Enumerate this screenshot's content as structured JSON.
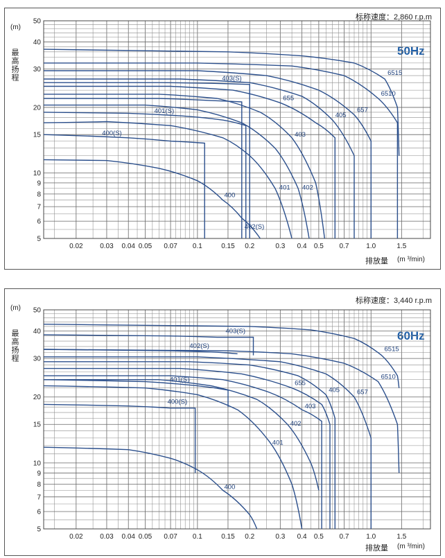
{
  "panels": [
    {
      "speed_text": "标称速度：2,860 r.p.m",
      "freq_label": "50Hz",
      "ylabel": "最高扬程",
      "yunit": "(m)",
      "xlabel": "排放量",
      "xunit": "(m ³/min)",
      "xtick_labels": [
        "0.02",
        "0.03",
        "0.04",
        "0.05",
        "0.07",
        "0.1",
        "0.15",
        "0.2",
        "0.3",
        "0.4",
        "0.5",
        "0.7",
        "1.0",
        "1.5"
      ],
      "ytick_labels": [
        "5",
        "6",
        "7",
        "8",
        "9",
        "10",
        "15",
        "20",
        "30",
        "40",
        "50"
      ]
    },
    {
      "speed_text": "标称速度：3,440 r.p.m",
      "freq_label": "60Hz",
      "ylabel": "最高扬程",
      "yunit": "(m)",
      "xlabel": "排放量",
      "xunit": "(m ³/min)",
      "xtick_labels": [
        "0.02",
        "0.03",
        "0.04",
        "0.05",
        "0.07",
        "0.1",
        "0.15",
        "0.2",
        "0.3",
        "0.4",
        "0.5",
        "0.7",
        "1.0",
        "1.5"
      ],
      "ytick_labels": [
        "5",
        "6",
        "7",
        "8",
        "9",
        "10",
        "15",
        "20",
        "30",
        "40",
        "50"
      ]
    }
  ],
  "chart_data": [
    {
      "type": "line",
      "x_scale": "log",
      "y_scale": "log",
      "xlim": [
        0.013,
        2.2
      ],
      "ylim": [
        5,
        50
      ],
      "grid": true,
      "xlabel": "排放量",
      "ylabel": "最高扬程",
      "xticks": [
        0.02,
        0.03,
        0.04,
        0.05,
        0.07,
        0.1,
        0.15,
        0.2,
        0.3,
        0.4,
        0.5,
        0.7,
        1.0,
        1.5
      ],
      "yticks": [
        5,
        6,
        7,
        8,
        9,
        10,
        15,
        20,
        30,
        40,
        50
      ],
      "series": [
        {
          "name": "400",
          "points": [
            [
              0.013,
              11.5
            ],
            [
              0.03,
              11.4
            ],
            [
              0.06,
              10.5
            ],
            [
              0.1,
              9.2
            ],
            [
              0.14,
              7.5
            ],
            [
              0.18,
              6.2
            ],
            [
              0.23,
              5
            ]
          ]
        },
        {
          "name": "400(S)",
          "points": [
            [
              0.013,
              15.0
            ],
            [
              0.04,
              14.5
            ],
            [
              0.07,
              14.0
            ],
            [
              0.11,
              13.7
            ],
            [
              0.11,
              5
            ]
          ]
        },
        {
          "name": "401",
          "points": [
            [
              0.013,
              17.0
            ],
            [
              0.03,
              17.2
            ],
            [
              0.07,
              16.5
            ],
            [
              0.14,
              14.5
            ],
            [
              0.2,
              12.0
            ],
            [
              0.28,
              8.5
            ],
            [
              0.35,
              5
            ]
          ]
        },
        {
          "name": "401(S)",
          "points": [
            [
              0.013,
              19.0
            ],
            [
              0.04,
              18.8
            ],
            [
              0.08,
              18.3
            ],
            [
              0.14,
              17.5
            ],
            [
              0.19,
              16.5
            ],
            [
              0.19,
              5
            ]
          ]
        },
        {
          "name": "402",
          "points": [
            [
              0.013,
              20.5
            ],
            [
              0.05,
              20.5
            ],
            [
              0.1,
              19.5
            ],
            [
              0.18,
              17.0
            ],
            [
              0.28,
              13.0
            ],
            [
              0.38,
              8.5
            ],
            [
              0.44,
              5
            ]
          ]
        },
        {
          "name": "402(S)",
          "points": [
            [
              0.013,
              22.0
            ],
            [
              0.06,
              22.0
            ],
            [
              0.12,
              21.5
            ],
            [
              0.18,
              21.2
            ],
            [
              0.18,
              5
            ]
          ]
        },
        {
          "name": "403",
          "points": [
            [
              0.013,
              23.0
            ],
            [
              0.06,
              23.0
            ],
            [
              0.13,
              22.0
            ],
            [
              0.23,
              19.0
            ],
            [
              0.35,
              14.5
            ],
            [
              0.48,
              9.0
            ],
            [
              0.54,
              5
            ]
          ]
        },
        {
          "name": "403(S)",
          "points": [
            [
              0.013,
              26.0
            ],
            [
              0.06,
              26.0
            ],
            [
              0.12,
              25.8
            ],
            [
              0.2,
              25.5
            ],
            [
              0.2,
              5
            ]
          ]
        },
        {
          "name": "655",
          "points": [
            [
              0.013,
              25.0
            ],
            [
              0.07,
              25.0
            ],
            [
              0.16,
              24.0
            ],
            [
              0.3,
              21.0
            ],
            [
              0.48,
              17.0
            ],
            [
              0.62,
              14.5
            ],
            [
              0.62,
              5
            ]
          ]
        },
        {
          "name": "405",
          "points": [
            [
              0.013,
              27.0
            ],
            [
              0.08,
              27.0
            ],
            [
              0.2,
              26.0
            ],
            [
              0.4,
              22.5
            ],
            [
              0.6,
              17.5
            ],
            [
              0.8,
              12.0
            ],
            [
              0.8,
              5
            ]
          ]
        },
        {
          "name": "657",
          "points": [
            [
              0.013,
              29.5
            ],
            [
              0.1,
              29.5
            ],
            [
              0.25,
              28.0
            ],
            [
              0.5,
              24.0
            ],
            [
              0.8,
              18.5
            ],
            [
              1.0,
              14.0
            ],
            [
              1.0,
              5
            ]
          ]
        },
        {
          "name": "6510",
          "points": [
            [
              0.013,
              32.0
            ],
            [
              0.1,
              32.0
            ],
            [
              0.35,
              31.0
            ],
            [
              0.7,
              28.0
            ],
            [
              1.1,
              22.0
            ],
            [
              1.42,
              17.0
            ],
            [
              1.42,
              5
            ]
          ]
        },
        {
          "name": "6515",
          "points": [
            [
              0.013,
              37.0
            ],
            [
              0.15,
              36.0
            ],
            [
              0.4,
              34.5
            ],
            [
              0.8,
              32.0
            ],
            [
              1.2,
              27.0
            ],
            [
              1.42,
              20.0
            ],
            [
              1.45,
              12.0
            ]
          ]
        }
      ]
    },
    {
      "type": "line",
      "x_scale": "log",
      "y_scale": "log",
      "xlim": [
        0.013,
        2.2
      ],
      "ylim": [
        5,
        50
      ],
      "grid": true,
      "xlabel": "排放量",
      "ylabel": "最高扬程",
      "xticks": [
        0.02,
        0.03,
        0.04,
        0.05,
        0.07,
        0.1,
        0.15,
        0.2,
        0.3,
        0.4,
        0.5,
        0.7,
        1.0,
        1.5
      ],
      "yticks": [
        5,
        6,
        7,
        8,
        9,
        10,
        15,
        20,
        30,
        40,
        50
      ],
      "series": [
        {
          "name": "400",
          "points": [
            [
              0.013,
              11.8
            ],
            [
              0.04,
              11.5
            ],
            [
              0.07,
              10.5
            ],
            [
              0.1,
              9.3
            ],
            [
              0.14,
              7.5
            ],
            [
              0.2,
              5.8
            ],
            [
              0.22,
              5
            ]
          ]
        },
        {
          "name": "400(S)",
          "points": [
            [
              0.013,
              18.5
            ],
            [
              0.04,
              18.2
            ],
            [
              0.07,
              17.8
            ],
            [
              0.097,
              17.8
            ],
            [
              0.097,
              9.0
            ]
          ]
        },
        {
          "name": "401",
          "points": [
            [
              0.013,
              22.5
            ],
            [
              0.05,
              22.0
            ],
            [
              0.1,
              20.5
            ],
            [
              0.17,
              17.5
            ],
            [
              0.26,
              12.5
            ],
            [
              0.35,
              8.0
            ],
            [
              0.4,
              5
            ]
          ]
        },
        {
          "name": "401(S)",
          "points": [
            [
              0.013,
              24.0
            ],
            [
              0.05,
              23.5
            ],
            [
              0.1,
              22.5
            ],
            [
              0.15,
              21.5
            ],
            [
              0.15,
              18.0
            ]
          ]
        },
        {
          "name": "402",
          "points": [
            [
              0.013,
              24.0
            ],
            [
              0.06,
              24.0
            ],
            [
              0.12,
              22.5
            ],
            [
              0.22,
              19.5
            ],
            [
              0.33,
              15.0
            ],
            [
              0.45,
              10.0
            ],
            [
              0.5,
              7.5
            ]
          ]
        },
        {
          "name": "402(S)",
          "points": [
            [
              0.013,
              33.0
            ],
            [
              0.07,
              32.5
            ],
            [
              0.13,
              32.0
            ],
            [
              0.17,
              31.5
            ]
          ]
        },
        {
          "name": "403",
          "points": [
            [
              0.013,
              25.0
            ],
            [
              0.07,
              25.0
            ],
            [
              0.14,
              24.0
            ],
            [
              0.26,
              21.0
            ],
            [
              0.4,
              17.5
            ],
            [
              0.52,
              15.5
            ],
            [
              0.52,
              5
            ]
          ]
        },
        {
          "name": "403(S)",
          "points": [
            [
              0.013,
              38.5
            ],
            [
              0.07,
              38.0
            ],
            [
              0.13,
              37.5
            ],
            [
              0.21,
              37.5
            ],
            [
              0.21,
              31.0
            ]
          ]
        },
        {
          "name": "655",
          "points": [
            [
              0.013,
              27.0
            ],
            [
              0.08,
              27.0
            ],
            [
              0.18,
              25.5
            ],
            [
              0.35,
              22.0
            ],
            [
              0.52,
              18.5
            ],
            [
              0.58,
              15.0
            ],
            [
              0.58,
              5
            ]
          ]
        },
        {
          "name": "405",
          "points": [
            [
              0.013,
              29.0
            ],
            [
              0.09,
              29.0
            ],
            [
              0.2,
              28.0
            ],
            [
              0.38,
              25.0
            ],
            [
              0.55,
              20.5
            ],
            [
              0.62,
              16.0
            ],
            [
              0.62,
              5
            ]
          ]
        },
        {
          "name": "657",
          "points": [
            [
              0.013,
              30.5
            ],
            [
              0.1,
              30.5
            ],
            [
              0.3,
              29.0
            ],
            [
              0.55,
              25.5
            ],
            [
              0.8,
              20.0
            ],
            [
              1.0,
              13.0
            ],
            [
              1.0,
              5
            ]
          ]
        },
        {
          "name": "6510",
          "points": [
            [
              0.013,
              33.0
            ],
            [
              0.15,
              32.5
            ],
            [
              0.35,
              31.5
            ],
            [
              0.7,
              28.5
            ],
            [
              1.1,
              23.5
            ],
            [
              1.42,
              15.0
            ],
            [
              1.45,
              9.0
            ]
          ]
        },
        {
          "name": "6515",
          "points": [
            [
              0.013,
              43.0
            ],
            [
              0.2,
              42.0
            ],
            [
              0.45,
              40.5
            ],
            [
              0.8,
              37.0
            ],
            [
              1.15,
              31.0
            ],
            [
              1.42,
              25.0
            ],
            [
              1.45,
              22.0
            ]
          ]
        }
      ]
    }
  ]
}
